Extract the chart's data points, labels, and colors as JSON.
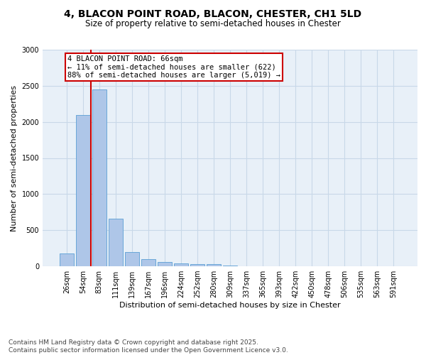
{
  "title_line1": "4, BLACON POINT ROAD, BLACON, CHESTER, CH1 5LD",
  "title_line2": "Size of property relative to semi-detached houses in Chester",
  "xlabel": "Distribution of semi-detached houses by size in Chester",
  "ylabel": "Number of semi-detached properties",
  "categories": [
    "26sqm",
    "54sqm",
    "83sqm",
    "111sqm",
    "139sqm",
    "167sqm",
    "196sqm",
    "224sqm",
    "252sqm",
    "280sqm",
    "309sqm",
    "337sqm",
    "365sqm",
    "393sqm",
    "422sqm",
    "450sqm",
    "478sqm",
    "506sqm",
    "535sqm",
    "563sqm",
    "591sqm"
  ],
  "values": [
    180,
    2100,
    2450,
    660,
    200,
    100,
    60,
    40,
    30,
    25,
    10,
    0,
    0,
    0,
    0,
    0,
    0,
    0,
    0,
    0,
    0
  ],
  "bar_color": "#aec6e8",
  "bar_edge_color": "#5a9fd4",
  "vline_color": "#cc0000",
  "annotation_box_color": "#cc0000",
  "annotation_text_line1": "4 BLACON POINT ROAD: 66sqm",
  "annotation_text_line2": "← 11% of semi-detached houses are smaller (622)",
  "annotation_text_line3": "88% of semi-detached houses are larger (5,019) →",
  "ylim": [
    0,
    3000
  ],
  "yticks": [
    0,
    500,
    1000,
    1500,
    2000,
    2500,
    3000
  ],
  "grid_color": "#c8d8e8",
  "bg_color": "#e8f0f8",
  "footer_line1": "Contains HM Land Registry data © Crown copyright and database right 2025.",
  "footer_line2": "Contains public sector information licensed under the Open Government Licence v3.0.",
  "title_fontsize": 10,
  "subtitle_fontsize": 8.5,
  "axis_label_fontsize": 8,
  "tick_fontsize": 7,
  "annotation_fontsize": 7.5,
  "footer_fontsize": 6.5
}
